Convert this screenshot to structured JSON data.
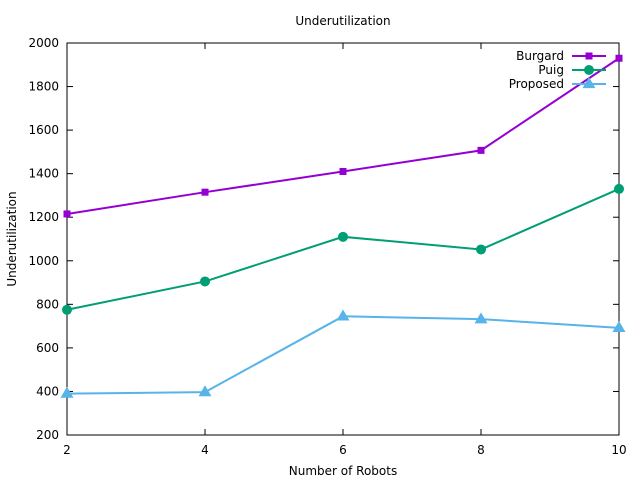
{
  "chart_data": {
    "type": "line",
    "title": "Underutilization",
    "xlabel": "Number of Robots",
    "ylabel": "Underutilization",
    "x": [
      2,
      4,
      6,
      8,
      10
    ],
    "xlim": [
      2,
      10
    ],
    "ylim": [
      200,
      2000
    ],
    "xticks": [
      2,
      4,
      6,
      8,
      10
    ],
    "yticks": [
      200,
      400,
      600,
      800,
      1000,
      1200,
      1400,
      1600,
      1800,
      2000
    ],
    "grid": false,
    "legend_position": "top-right",
    "series": [
      {
        "name": "Burgard",
        "values": [
          1215,
          1315,
          1410,
          1507,
          1930
        ],
        "color": "#9400d3",
        "marker": "square"
      },
      {
        "name": "Puig",
        "values": [
          775,
          905,
          1110,
          1052,
          1330
        ],
        "color": "#009e73",
        "marker": "circle"
      },
      {
        "name": "Proposed",
        "values": [
          390,
          397,
          745,
          732,
          692
        ],
        "color": "#56b4e9",
        "marker": "triangle"
      }
    ]
  }
}
